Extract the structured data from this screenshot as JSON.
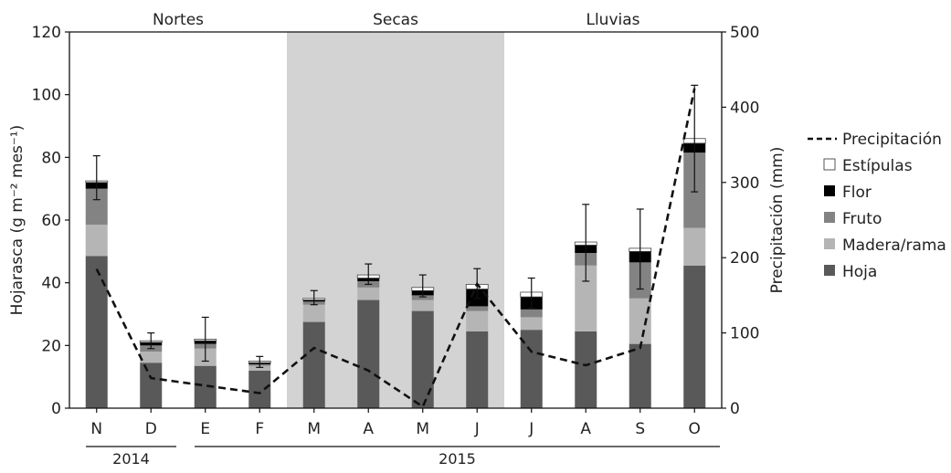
{
  "chart_data": {
    "type": "bar",
    "stacked": true,
    "categories": [
      "N",
      "D",
      "E",
      "F",
      "M",
      "A",
      "M",
      "J",
      "J",
      "A",
      "S",
      "O"
    ],
    "year_groups": [
      {
        "label": "2014",
        "from": 0,
        "to": 1
      },
      {
        "label": "2015",
        "from": 2,
        "to": 11
      }
    ],
    "seasons": [
      {
        "label": "Nortes",
        "from": 0,
        "to": 3,
        "shaded": false
      },
      {
        "label": "Secas",
        "from": 4,
        "to": 7,
        "shaded": true
      },
      {
        "label": "Lluvias",
        "from": 8,
        "to": 11,
        "shaded": false
      }
    ],
    "series": [
      {
        "name": "Hoja",
        "color": "#595959",
        "values": [
          48.5,
          14.5,
          13.5,
          12.0,
          27.5,
          34.5,
          31.0,
          24.5,
          25.0,
          24.5,
          20.5,
          45.5
        ]
      },
      {
        "name": "Madera/rama",
        "color": "#b5b5b5",
        "values": [
          10.0,
          3.5,
          5.5,
          1.5,
          5.5,
          4.0,
          3.5,
          6.5,
          4.0,
          21.0,
          14.5,
          12.0
        ]
      },
      {
        "name": "Fruto",
        "color": "#838383",
        "values": [
          11.5,
          2.0,
          1.5,
          0.5,
          1.0,
          2.0,
          1.5,
          1.5,
          2.5,
          4.0,
          11.5,
          24.0
        ]
      },
      {
        "name": "Flor",
        "color": "#000000",
        "values": [
          2.0,
          1.0,
          1.0,
          0.5,
          0.5,
          1.0,
          1.5,
          5.5,
          4.0,
          2.5,
          3.5,
          3.0
        ]
      },
      {
        "name": "Estípulas",
        "color": "#ffffff",
        "values": [
          0.5,
          0.5,
          0.5,
          0.5,
          0.5,
          1.0,
          1.0,
          1.5,
          1.5,
          1.0,
          1.0,
          1.5
        ]
      }
    ],
    "totals": [
      72.5,
      21.5,
      22.0,
      15.0,
      35.0,
      42.5,
      38.5,
      39.5,
      37.0,
      53.0,
      51.0,
      86.0
    ],
    "error_low": [
      66.5,
      19.0,
      15.0,
      13.0,
      33.0,
      39.5,
      35.5,
      35.0,
      32.0,
      40.5,
      38.0,
      69.0
    ],
    "error_high": [
      80.5,
      24.0,
      29.0,
      16.5,
      37.5,
      46.0,
      42.5,
      44.5,
      41.5,
      65.0,
      63.5,
      103.0
    ],
    "line": {
      "name": "Precipitación",
      "axis": "right",
      "values": [
        185,
        40,
        30,
        20,
        80,
        50,
        2,
        165,
        75,
        57,
        80,
        425
      ]
    },
    "left_axis": {
      "label": "Hojarasca (g m⁻² mes⁻¹)",
      "range": [
        0,
        120
      ],
      "ticks": [
        "0",
        "20",
        "40",
        "60",
        "80",
        "100",
        "120"
      ]
    },
    "right_axis": {
      "label": "Precipitación (mm)",
      "range": [
        0,
        500
      ],
      "ticks": [
        "0",
        "100",
        "200",
        "300",
        "400",
        "500"
      ]
    },
    "legend": {
      "position": "right",
      "items": [
        {
          "name": "Precipitación",
          "style": "dashed-line"
        },
        {
          "name": "Estípulas",
          "style": "open-box"
        },
        {
          "name": "Flor",
          "style": "box",
          "color": "#000000"
        },
        {
          "name": "Fruto",
          "style": "box",
          "color": "#838383"
        },
        {
          "name": "Madera/rama",
          "style": "box",
          "color": "#b5b5b5"
        },
        {
          "name": "Hoja",
          "style": "box",
          "color": "#595959"
        }
      ]
    },
    "shade_color": "#d3d3d3",
    "grid": false
  }
}
